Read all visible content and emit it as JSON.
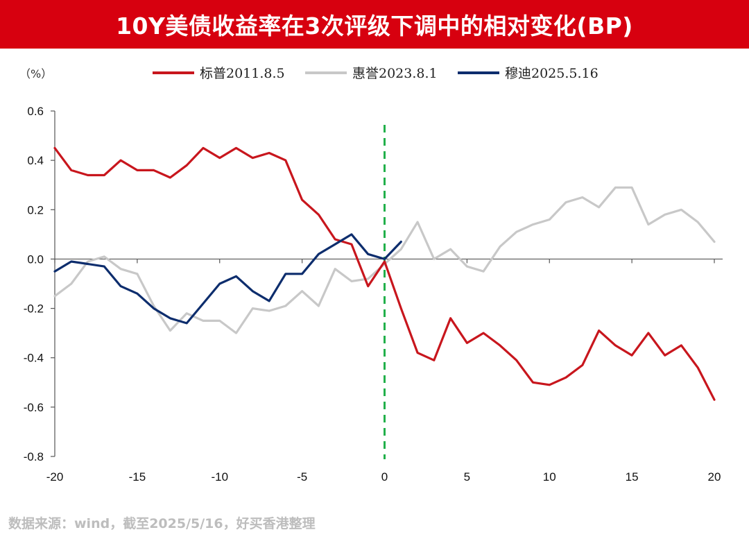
{
  "title": "10Y美债收益率在3次评级下调中的相对变化(BP)",
  "source": "数据来源：wind，截至2025/5/16，好买香港整理",
  "chart_data": {
    "type": "line",
    "y_unit": "（%）",
    "xlim": [
      -20,
      20
    ],
    "ylim": [
      -0.8,
      0.6
    ],
    "x_ticks": [
      -20,
      -15,
      -10,
      -5,
      0,
      5,
      10,
      15,
      20
    ],
    "x_tick_labels": [
      "-20",
      "-15",
      "-10",
      "-5",
      "0",
      "5",
      "10",
      "15",
      "20"
    ],
    "y_ticks": [
      0.6,
      0.4,
      0.2,
      0.0,
      -0.2,
      -0.4,
      -0.6,
      -0.8
    ],
    "y_tick_labels": [
      "0.6",
      "0.4",
      "0.2",
      "0.0",
      "-0.2",
      "-0.4",
      "-0.6",
      "-0.8"
    ],
    "reference_line": {
      "x": 0,
      "style": "dashed",
      "color": "#22b04b"
    },
    "legend_position": "top",
    "series": [
      {
        "name": "标普2011.8.5",
        "color": "#c8161d",
        "x": [
          -20,
          -19,
          -18,
          -17,
          -16,
          -15,
          -14,
          -13,
          -12,
          -11,
          -10,
          -9,
          -8,
          -7,
          -6,
          -5,
          -4,
          -3,
          -2,
          -1,
          0,
          1,
          2,
          3,
          4,
          5,
          6,
          7,
          8,
          9,
          10,
          11,
          12,
          13,
          14,
          15,
          16,
          17,
          18,
          19,
          20
        ],
        "y": [
          0.45,
          0.36,
          0.34,
          0.34,
          0.4,
          0.36,
          0.36,
          0.33,
          0.38,
          0.45,
          0.41,
          0.45,
          0.41,
          0.43,
          0.4,
          0.24,
          0.18,
          0.08,
          0.06,
          -0.11,
          -0.01,
          -0.2,
          -0.38,
          -0.41,
          -0.24,
          -0.34,
          -0.3,
          -0.35,
          -0.41,
          -0.5,
          -0.51,
          -0.48,
          -0.43,
          -0.29,
          -0.35,
          -0.39,
          -0.3,
          -0.39,
          -0.35,
          -0.44,
          -0.57
        ]
      },
      {
        "name": "惠誉2023.8.1",
        "color": "#c8c8c8",
        "x": [
          -20,
          -19,
          -18,
          -17,
          -16,
          -15,
          -14,
          -13,
          -12,
          -11,
          -10,
          -9,
          -8,
          -7,
          -6,
          -5,
          -4,
          -3,
          -2,
          -1,
          0,
          1,
          2,
          3,
          4,
          5,
          6,
          7,
          8,
          9,
          10,
          11,
          12,
          13,
          14,
          15,
          16,
          17,
          18,
          19,
          20
        ],
        "y": [
          -0.15,
          -0.1,
          -0.01,
          0.01,
          -0.04,
          -0.06,
          -0.19,
          -0.29,
          -0.22,
          -0.25,
          -0.25,
          -0.3,
          -0.2,
          -0.21,
          -0.19,
          -0.13,
          -0.19,
          -0.04,
          -0.09,
          -0.08,
          -0.02,
          0.04,
          0.15,
          0.0,
          0.04,
          -0.03,
          -0.05,
          0.05,
          0.11,
          0.14,
          0.16,
          0.23,
          0.25,
          0.21,
          0.29,
          0.29,
          0.14,
          0.18,
          0.2,
          0.15,
          0.07
        ]
      },
      {
        "name": "穆迪2025.5.16",
        "color": "#0d2d6d",
        "x": [
          -20,
          -19,
          -18,
          -17,
          -16,
          -15,
          -14,
          -13,
          -12,
          -11,
          -10,
          -9,
          -8,
          -7,
          -6,
          -5,
          -4,
          -3,
          -2,
          -1,
          0,
          1
        ],
        "y": [
          -0.05,
          -0.01,
          -0.02,
          -0.03,
          -0.11,
          -0.14,
          -0.2,
          -0.24,
          -0.26,
          -0.18,
          -0.1,
          -0.07,
          -0.13,
          -0.17,
          -0.06,
          -0.06,
          0.02,
          0.06,
          0.1,
          0.02,
          0.0,
          0.07
        ]
      }
    ]
  }
}
